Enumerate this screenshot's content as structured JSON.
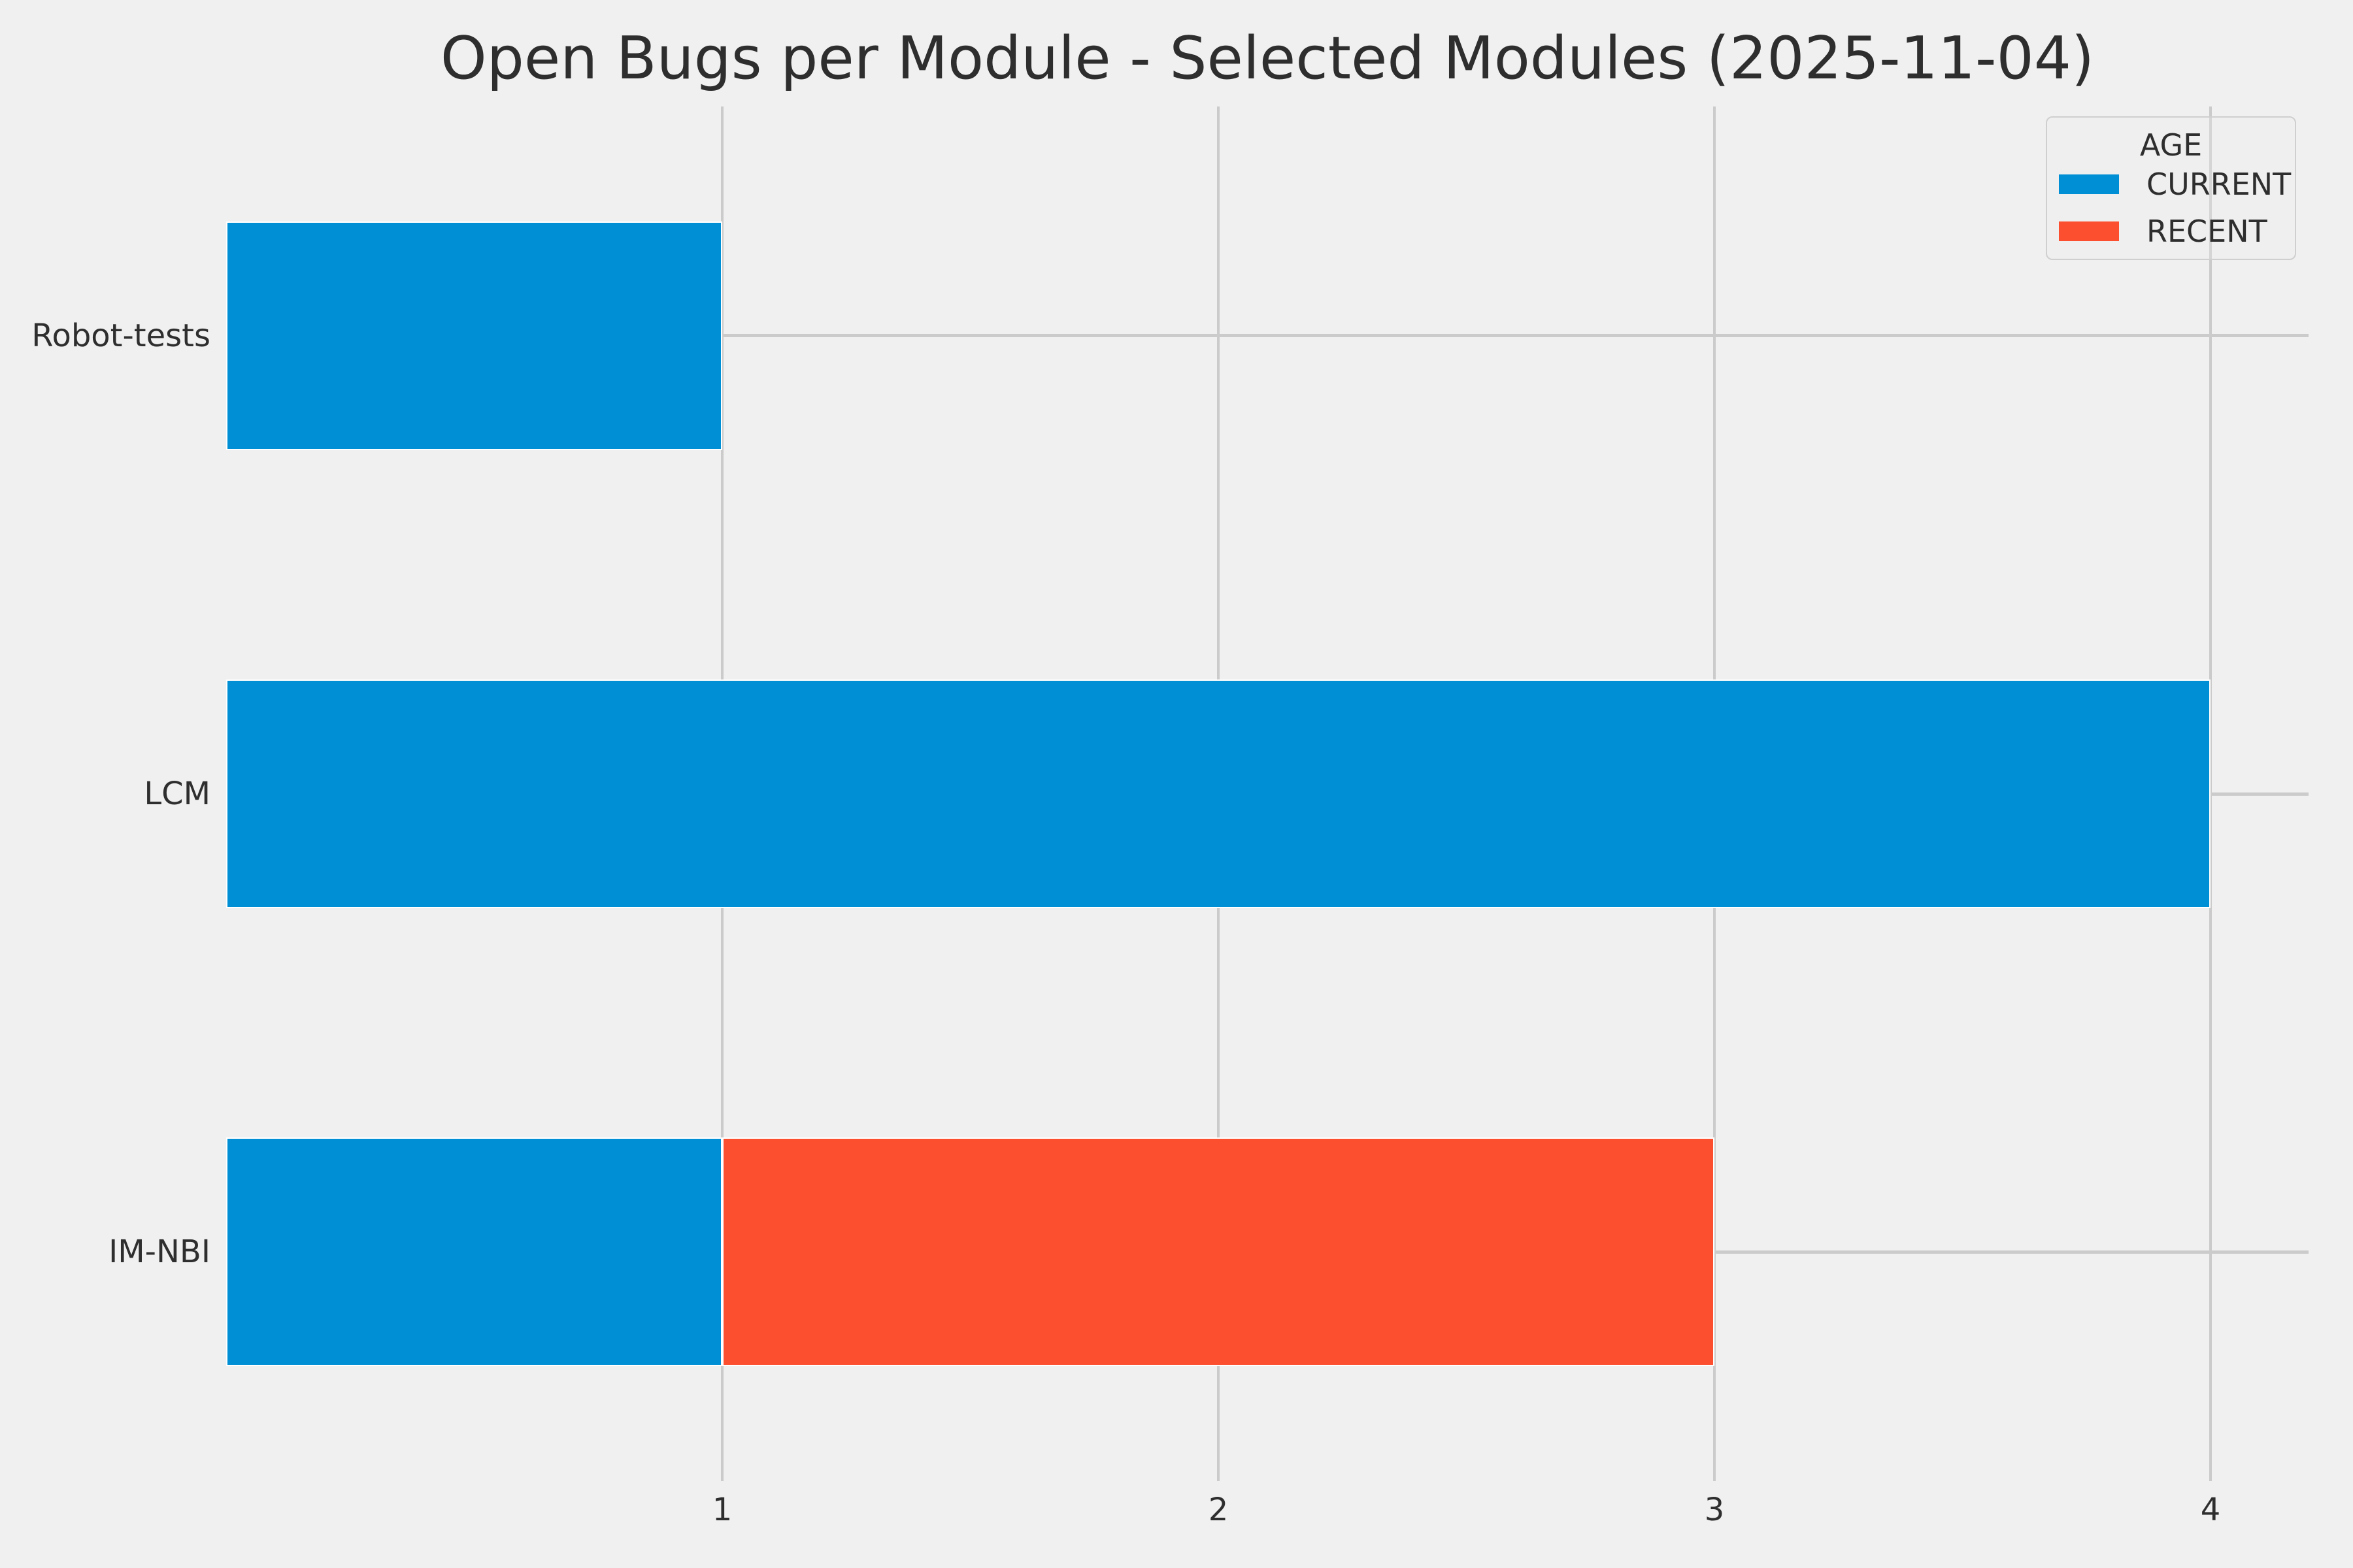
{
  "title": "Open Bugs per Module - Selected Modules (2025-11-04)",
  "legend": {
    "title": "AGE",
    "entries": [
      {
        "label": "CURRENT",
        "color": "#008FD5"
      },
      {
        "label": "RECENT",
        "color": "#FC4F30"
      }
    ]
  },
  "chart_data": {
    "type": "bar",
    "orientation": "horizontal",
    "stacked": true,
    "title": "Open Bugs per Module - Selected Modules (2025-11-04)",
    "categories": [
      "Robot-tests",
      "LCM",
      "IM-NBI"
    ],
    "series": [
      {
        "name": "CURRENT",
        "color": "#008FD5",
        "values": [
          1,
          4,
          1
        ]
      },
      {
        "name": "RECENT",
        "color": "#FC4F30",
        "values": [
          0,
          0,
          2
        ]
      }
    ],
    "xticks": [
      1,
      2,
      3,
      4
    ],
    "xlim": [
      0,
      4.2
    ],
    "xlabel": "",
    "ylabel": "",
    "grid": true,
    "legend_title": "AGE",
    "legend_position": "upper right"
  },
  "colors": {
    "background": "#F0F0F0",
    "grid": "#CBCBCB",
    "text": "#2E2E2E",
    "bar_edge": "#FFFFFF"
  }
}
